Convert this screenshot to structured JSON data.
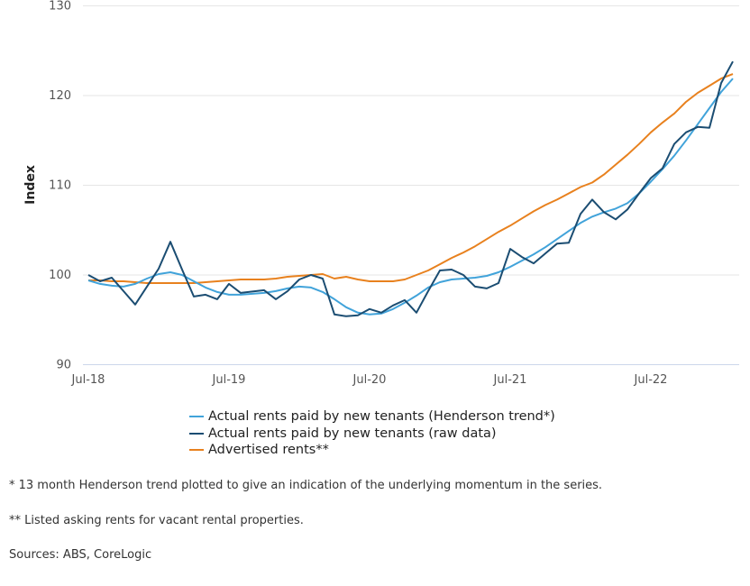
{
  "chart_data": {
    "type": "line",
    "title": "",
    "xlabel": "",
    "ylabel": "Index",
    "ylim": [
      90,
      130
    ],
    "yticks": [
      "90",
      "100",
      "110",
      "120",
      "130"
    ],
    "xticks": [
      "Jul-18",
      "Jul-19",
      "Jul-20",
      "Jul-21",
      "Jul-22"
    ],
    "grid": true,
    "legend_position": "bottom",
    "x": [
      "Jul-18",
      "Aug-18",
      "Sep-18",
      "Oct-18",
      "Nov-18",
      "Dec-18",
      "Jan-19",
      "Feb-19",
      "Mar-19",
      "Apr-19",
      "May-19",
      "Jun-19",
      "Jul-19",
      "Aug-19",
      "Sep-19",
      "Oct-19",
      "Nov-19",
      "Dec-19",
      "Jan-20",
      "Feb-20",
      "Mar-20",
      "Apr-20",
      "May-20",
      "Jun-20",
      "Jul-20",
      "Aug-20",
      "Sep-20",
      "Oct-20",
      "Nov-20",
      "Dec-20",
      "Jan-21",
      "Feb-21",
      "Mar-21",
      "Apr-21",
      "May-21",
      "Jun-21",
      "Jul-21",
      "Aug-21",
      "Sep-21",
      "Oct-21",
      "Nov-21",
      "Dec-21",
      "Jan-22",
      "Feb-22",
      "Mar-22",
      "Apr-22",
      "May-22",
      "Jun-22",
      "Jul-22",
      "Aug-22",
      "Sep-22",
      "Oct-22",
      "Nov-22",
      "Dec-22",
      "Jan-23",
      "Feb-23"
    ],
    "series": [
      {
        "name": "Actual rents paid by new tenants (Henderson trend*)",
        "color": "#41a3da",
        "values": [
          99.4,
          99.0,
          98.8,
          98.7,
          99.0,
          99.6,
          100.1,
          100.3,
          100.0,
          99.3,
          98.6,
          98.1,
          97.8,
          97.8,
          97.9,
          98.0,
          98.2,
          98.5,
          98.7,
          98.6,
          98.1,
          97.3,
          96.4,
          95.8,
          95.6,
          95.7,
          96.2,
          96.9,
          97.7,
          98.6,
          99.2,
          99.5,
          99.6,
          99.7,
          99.9,
          100.3,
          100.9,
          101.6,
          102.3,
          103.1,
          104.0,
          104.9,
          105.8,
          106.5,
          107.0,
          107.4,
          108.0,
          109.1,
          110.4,
          111.8,
          113.3,
          115.0,
          116.8,
          118.6,
          120.4,
          121.9
        ]
      },
      {
        "name": "Actual rents paid by new tenants (raw data)",
        "color": "#1b4d72",
        "values": [
          100.0,
          99.3,
          99.7,
          98.2,
          96.7,
          98.7,
          100.7,
          103.7,
          100.6,
          97.6,
          97.8,
          97.3,
          99.0,
          98.0,
          98.15,
          98.3,
          97.3,
          98.2,
          99.5,
          100.0,
          99.6,
          95.6,
          95.4,
          95.5,
          96.2,
          95.8,
          96.6,
          97.2,
          95.8,
          98.2,
          100.5,
          100.6,
          100.0,
          98.7,
          98.5,
          99.1,
          102.9,
          102.0,
          101.3,
          102.4,
          103.5,
          103.6,
          106.8,
          108.4,
          107.0,
          106.2,
          107.3,
          109.1,
          110.8,
          111.9,
          114.6,
          115.9,
          116.5,
          116.4,
          121.4,
          123.8
        ]
      },
      {
        "name": "Advertised rents**",
        "color": "#e8811e",
        "values": [
          99.4,
          99.4,
          99.3,
          99.3,
          99.2,
          99.1,
          99.1,
          99.1,
          99.1,
          99.1,
          99.2,
          99.3,
          99.4,
          99.5,
          99.5,
          99.5,
          99.6,
          99.8,
          99.9,
          100.0,
          100.1,
          99.6,
          99.8,
          99.5,
          99.3,
          99.3,
          99.3,
          99.5,
          100.0,
          100.5,
          101.2,
          101.9,
          102.5,
          103.2,
          104.0,
          104.8,
          105.5,
          106.3,
          107.1,
          107.8,
          108.4,
          109.1,
          109.8,
          110.3,
          111.2,
          112.3,
          113.4,
          114.6,
          115.9,
          117.0,
          118.0,
          119.3,
          120.3,
          121.1,
          121.9,
          122.4
        ]
      }
    ]
  },
  "notes": {
    "henderson": "* 13 month Henderson trend plotted to give an indication of the underlying momentum in the series.",
    "listed": "** Listed asking rents for vacant rental properties.",
    "sources": "Sources: ABS, CoreLogic"
  }
}
